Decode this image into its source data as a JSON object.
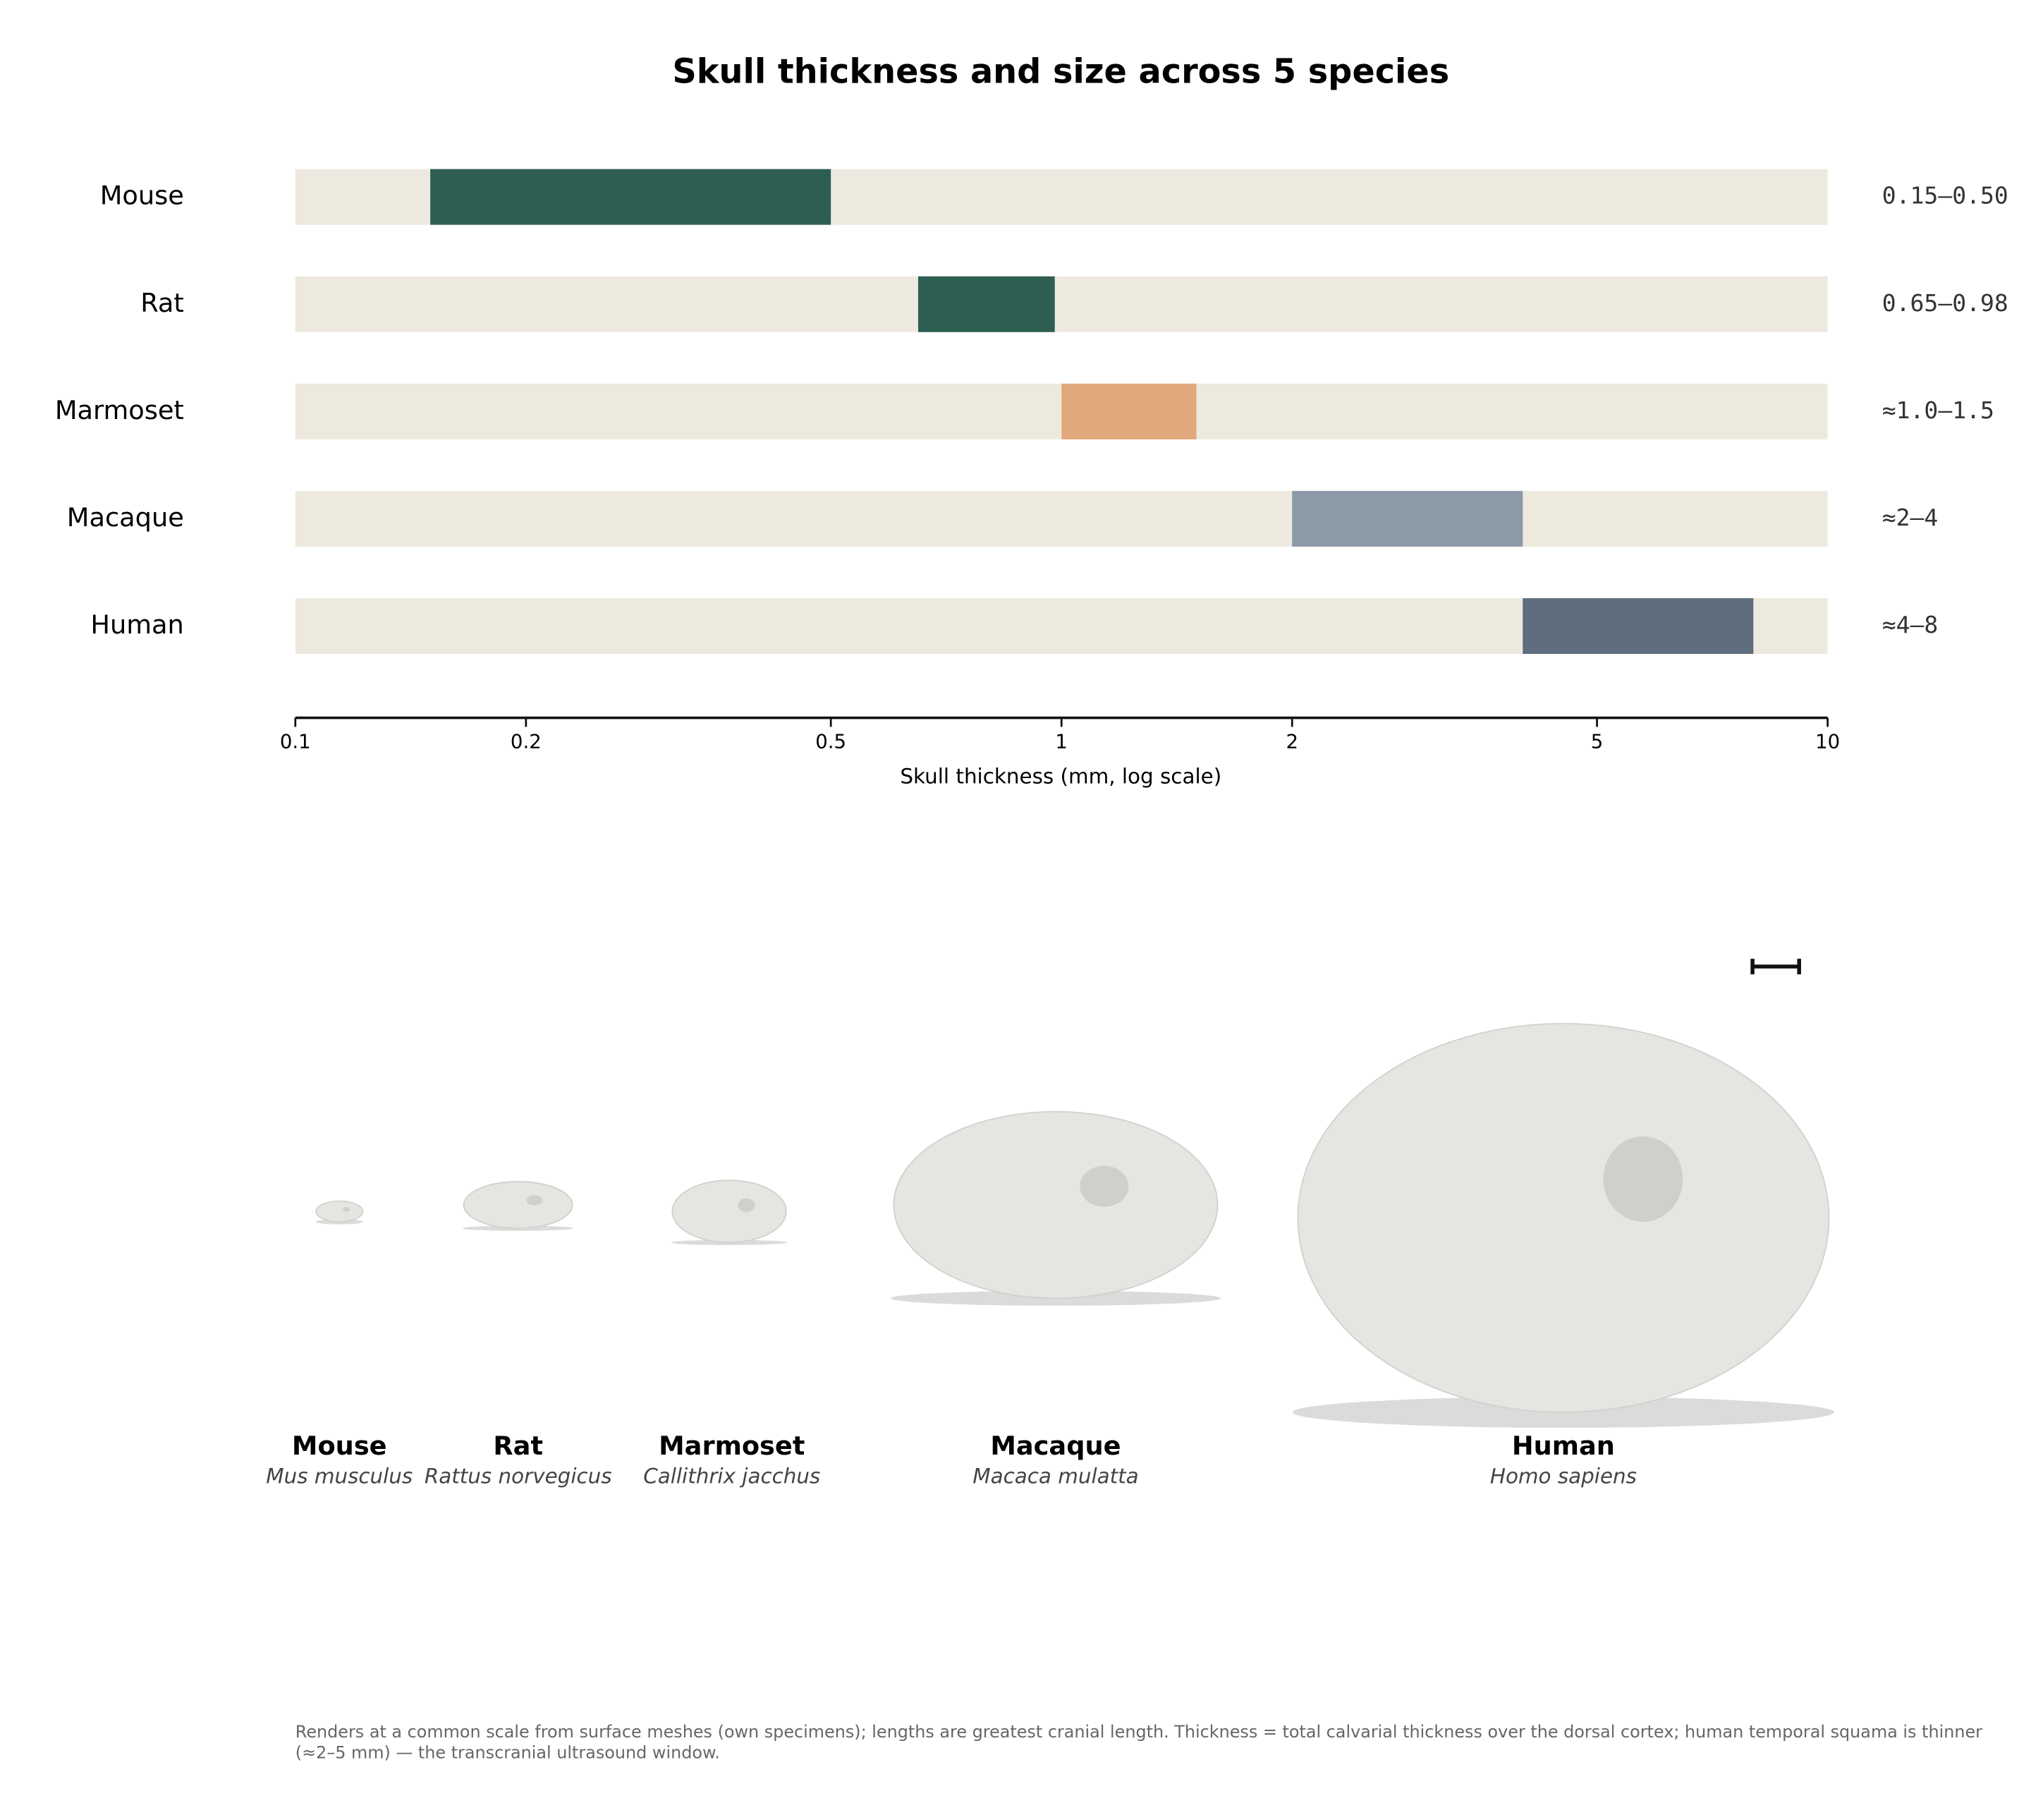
{
  "chart_data": {
    "type": "range-bar",
    "title": "Skull thickness and size across 5 species",
    "categories": [
      "Mouse",
      "Rat",
      "Marmoset",
      "Macaque",
      "Human"
    ],
    "ranges": [
      [
        0.15,
        0.5
      ],
      [
        0.65,
        0.98
      ],
      [
        1.0,
        1.5
      ],
      [
        2,
        4
      ],
      [
        4,
        8
      ]
    ],
    "range_labels": [
      "0.15–0.50",
      "0.65–0.98",
      "≈1.0–1.5",
      "≈2–4",
      "≈4–8"
    ],
    "colors": [
      "#2e5e52",
      "#2e5e52",
      "#e0a87c",
      "#8c99a6",
      "#5e6e7e"
    ],
    "track_color": "#ede9df",
    "xlabel": "Skull thickness (mm, log scale)",
    "log_scale": true,
    "xlim": [
      0.1,
      10
    ],
    "xticks": [
      0.1,
      0.2,
      0.5,
      1,
      2,
      5,
      10
    ]
  },
  "specimens": [
    {
      "name": "Mouse",
      "latin": "Mus musculus"
    },
    {
      "name": "Rat",
      "latin": "Rattus norvegicus"
    },
    {
      "name": "Marmoset",
      "latin": "Callithrix jacchus"
    },
    {
      "name": "Macaque",
      "latin": "Macaca mulatta"
    },
    {
      "name": "Human",
      "latin": "Homo sapiens"
    }
  ],
  "note": "Renders at a common scale from surface meshes (own specimens); lengths are greatest cranial length. Thickness = total calvarial thickness over the dorsal cortex; human temporal squama is thinner (≈2–5 mm) — the transcranial ultrasound window."
}
